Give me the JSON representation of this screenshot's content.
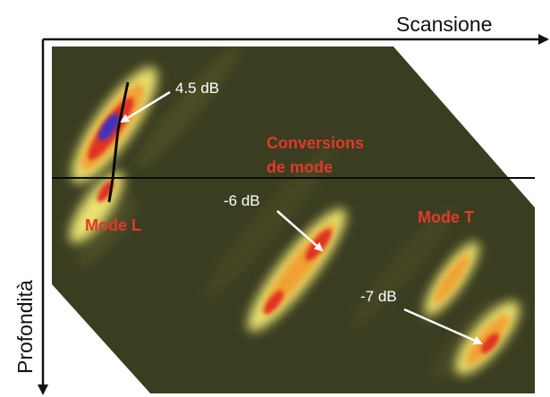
{
  "axes": {
    "horizontal_label": "Scansione",
    "vertical_label": "Profondità"
  },
  "labels": {
    "peak_l": "4.5 dB",
    "conversion_line1": "Conversions",
    "conversion_line2": "de mode",
    "mode_l": "Mode L",
    "mode_t": "Mode T",
    "peak_mid": "-6 dB",
    "peak_t": "-7 dB"
  },
  "colors": {
    "background": "#3a3d20",
    "signal_outer": "#e8e070",
    "signal_mid": "#f0a030",
    "signal_core": "#e03020",
    "signal_peak": "#4030c0",
    "label_red": "#e03a2a",
    "arrow": "#ffffff",
    "axis": "#111111"
  }
}
